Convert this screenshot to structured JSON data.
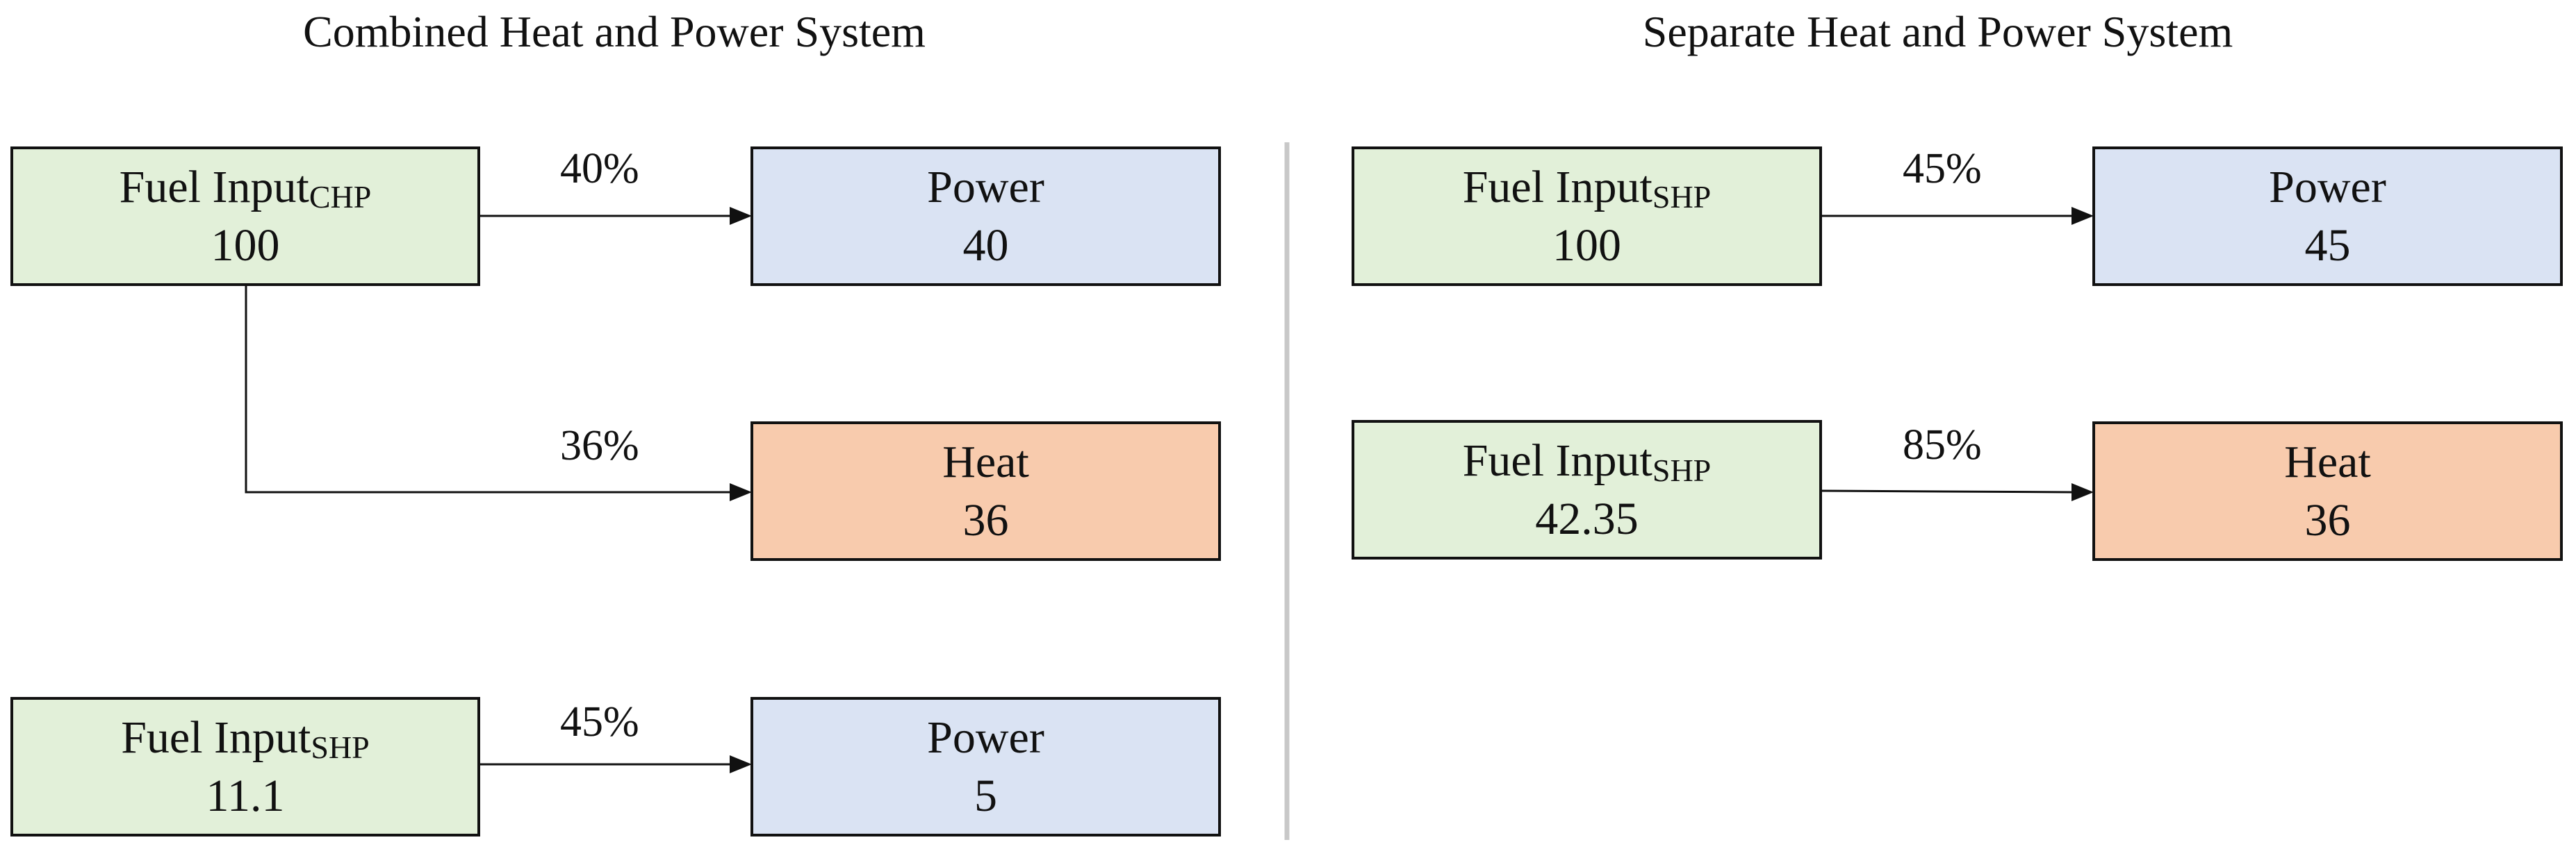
{
  "titles": {
    "left": "Combined Heat and Power System",
    "right": "Separate Heat and Power System"
  },
  "chp_system": {
    "fuel_input_chp": {
      "label": "Fuel Input",
      "subscript": "CHP",
      "value": "100"
    },
    "power": {
      "label": "Power",
      "value": "40"
    },
    "heat": {
      "label": "Heat",
      "value": "36"
    },
    "power_efficiency": "40%",
    "heat_efficiency": "36%",
    "fuel_input_shp": {
      "label": "Fuel Input",
      "subscript": "SHP",
      "value": "11.1"
    },
    "power_shp": {
      "label": "Power",
      "value": "5"
    },
    "power_shp_efficiency": "45%"
  },
  "shp_system": {
    "fuel_input_power": {
      "label": "Fuel Input",
      "subscript": "SHP",
      "value": "100"
    },
    "power": {
      "label": "Power",
      "value": "45"
    },
    "power_efficiency": "45%",
    "fuel_input_heat": {
      "label": "Fuel Input",
      "subscript": "SHP",
      "value": "42.35"
    },
    "heat": {
      "label": "Heat",
      "value": "36"
    },
    "heat_efficiency": "85%"
  },
  "colors": {
    "fuel_fill": "#e2f0d9",
    "power_fill": "#dae3f3",
    "heat_fill": "#f8cbad",
    "divider": "#c8c8c8",
    "stroke": "#111111"
  }
}
